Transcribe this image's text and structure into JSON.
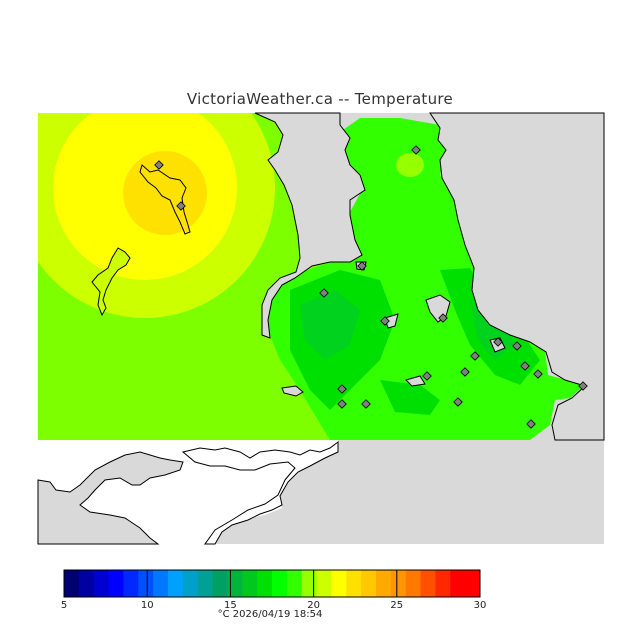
{
  "title": "VictoriaWeather.ca -- Temperature",
  "map": {
    "land_color": "#d9d9d9",
    "no_data_color": "#ffffff",
    "coast_color": "#000000",
    "station_color": "#808080"
  },
  "legend": {
    "min": 5,
    "max": 30,
    "tick_labels": [
      "5",
      "10",
      "15",
      "20",
      "25",
      "30"
    ],
    "colors": [
      "#00006e",
      "#0000a0",
      "#0000d0",
      "#0000ff",
      "#0028ff",
      "#0050ff",
      "#0078ff",
      "#00a0ff",
      "#00a0c8",
      "#00a096",
      "#00a064",
      "#00b43c",
      "#00c81e",
      "#00e000",
      "#00ff00",
      "#32ff00",
      "#96ff00",
      "#ccff00",
      "#ffff00",
      "#ffe100",
      "#ffc800",
      "#ffaa00",
      "#ff9600",
      "#ff7800",
      "#ff5000",
      "#ff2800",
      "#ff0000",
      "#ff0000"
    ]
  },
  "footer": "°C  2026/04/19 18:54"
}
